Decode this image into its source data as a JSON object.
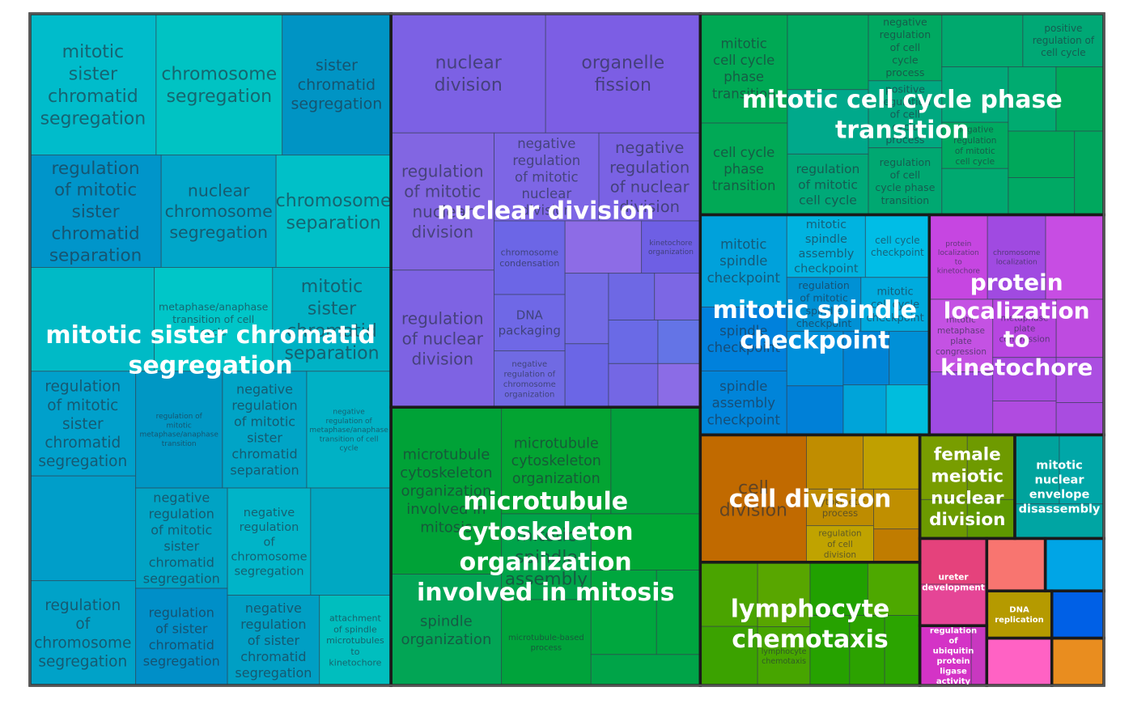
{
  "chart_data": {
    "type": "treemap",
    "title": "",
    "groups": [
      {
        "name": "mitotic sister chromatid segregation",
        "color": "#00a9c4",
        "cells": [
          {
            "label": "mitotic sister chromatid segregation",
            "color": "#00bccb",
            "size": 5.8
          },
          {
            "label": "chromosome segregation",
            "color": "#00c3c3",
            "size": 5.8
          },
          {
            "label": "sister chromatid segregation",
            "color": "#0094c4",
            "size": 5.0
          },
          {
            "label": "nuclear chromosome segregation",
            "color": "#00a6c9",
            "size": 4.2
          },
          {
            "label": "chromosome separation",
            "color": "#00c0c8",
            "size": 4.2
          },
          {
            "label": "",
            "color": "#00bac6",
            "size": 4.2
          },
          {
            "label": "metaphase/anaphase transition of cell cycle",
            "color": "#00c6c8",
            "size": 4.0
          },
          {
            "label": "regulation of mitotic sister chromatid segregation",
            "color": "#00a0cb",
            "size": 3.6
          },
          {
            "label": "",
            "color": "#009ec9",
            "size": 3.6
          },
          {
            "label": "regulation of mitotic sister chromatid separation",
            "color": "#0095ca",
            "size": 4.8
          },
          {
            "label": "regulation of chromosome segregation",
            "color": "#00a2c8",
            "size": 3.6
          },
          {
            "label": "mitotic sister chromatid separation",
            "color": "#00b2c5",
            "size": 4.0
          },
          {
            "label": "regulation of sister chromatid segregation",
            "color": "#008fc8",
            "size": 2.9
          },
          {
            "label": "negative regulation of mitotic sister chromatid separation",
            "color": "#00a4c6",
            "size": 3.2
          },
          {
            "label": "negative regulation of metaphase/anaphase transition of cell cycle",
            "color": "#00b1c5",
            "size": 3.2
          },
          {
            "label": "negative regulation of mitotic sister chromatid segregation",
            "color": "#00a3c4",
            "size": 3.0
          },
          {
            "label": "negative regulation of chromosome segregation",
            "color": "#00b4c8",
            "size": 2.9
          },
          {
            "label": "regulation of mitotic metaphase/anaphase transition",
            "color": "#0097c4",
            "size": 3.3
          },
          {
            "label": "",
            "color": "#00a8c2",
            "size": 2.8
          },
          {
            "label": "negative regulation of sister chromatid segregation",
            "color": "#009fc4",
            "size": 2.7
          },
          {
            "label": "attachment of spindle microtubules to kinetochore",
            "color": "#00bebe",
            "size": 2.1
          }
        ]
      },
      {
        "name": "microtubule cytoskeleton organization involved in mitosis",
        "color": "#00a63a",
        "cells": [
          {
            "label": "microtubule cytoskeleton organization involved in mitosis",
            "color": "#00a237",
            "size": 6.0
          },
          {
            "label": "spindle organization",
            "color": "#02a555",
            "size": 4.0
          },
          {
            "label": "microtubule cytoskeleton organization",
            "color": "#03a432",
            "size": 3.8
          },
          {
            "label": "",
            "color": "#01a13b",
            "size": 3.1
          },
          {
            "label": "mitotic spindle assembly",
            "color": "#00a44a",
            "size": 2.5
          },
          {
            "label": "microtubule-based process",
            "color": "#00a33b",
            "size": 2.5
          },
          {
            "label": "",
            "color": "#00a734",
            "size": 2.0
          },
          {
            "label": "",
            "color": "#00a73e",
            "size": 1.8
          },
          {
            "label": "",
            "color": "#00a53f",
            "size": 1.2
          },
          {
            "label": "",
            "color": "#00a448",
            "size": 1.1
          }
        ]
      },
      {
        "name": "mitotic cell cycle phase transition",
        "color": "#00a963",
        "cells": [
          {
            "label": "mitotic cell cycle phase transition",
            "color": "#00a954",
            "size": 3.1
          },
          {
            "label": "cell cycle phase transition",
            "color": "#01a956",
            "size": 2.6
          },
          {
            "label": "regulation of mitotic cell cycle",
            "color": "#00a978",
            "size": 1.6
          },
          {
            "label": "negative regulation of cell cycle process",
            "color": "#00a961",
            "size": 1.6
          },
          {
            "label": "",
            "color": "#00a98b",
            "size": 1.7
          },
          {
            "label": "",
            "color": "#00a960",
            "size": 2.0
          },
          {
            "label": "negative regulation of mitotic cell cycle",
            "color": "#00aa61",
            "size": 1.0
          },
          {
            "label": "",
            "color": "#00a970",
            "size": 1.0
          },
          {
            "label": "",
            "color": "#00ab70",
            "size": 1.0
          },
          {
            "label": "",
            "color": "#00a96e",
            "size": 1.4
          },
          {
            "label": "",
            "color": "#00aa79",
            "size": 1.2
          },
          {
            "label": "positive regulation of cell cycle process",
            "color": "#00a880",
            "size": 1.6
          },
          {
            "label": "regulation of cell cycle phase transition",
            "color": "#00a871",
            "size": 1.6
          },
          {
            "label": "positive regulation of cell cycle",
            "color": "#00a875",
            "size": 1.4
          },
          {
            "label": "",
            "color": "#00a95a",
            "size": 1.0
          },
          {
            "label": "",
            "color": "#00a85a",
            "size": 1.0
          },
          {
            "label": "",
            "color": "#00a964",
            "size": 0.8
          },
          {
            "label": "",
            "color": "#00a85e",
            "size": 0.8
          }
        ]
      },
      {
        "name": "nuclear division",
        "color": "#7d66e5",
        "cells": [
          {
            "label": "nuclear division",
            "color": "#7c61e4",
            "size": 6.0
          },
          {
            "label": "organelle fission",
            "color": "#7c5ee4",
            "size": 6.0
          },
          {
            "label": "regulation of mitotic nuclear division",
            "color": "#8266e2",
            "size": 4.6
          },
          {
            "label": "regulation of nuclear division",
            "color": "#7e63e3",
            "size": 4.6
          },
          {
            "label": "negative regulation of mitotic nuclear division",
            "color": "#7d66e5",
            "size": 3.0
          },
          {
            "label": "negative regulation of nuclear division",
            "color": "#7a62e4",
            "size": 2.9
          },
          {
            "label": "chromosome condensation",
            "color": "#6c66e6",
            "size": 1.7
          },
          {
            "label": "DNA packaging",
            "color": "#6f68e6",
            "size": 1.3
          },
          {
            "label": "negative regulation of chromosome organization",
            "color": "#706ae3",
            "size": 1.3
          },
          {
            "label": "kinetochore organization",
            "color": "#6e5fe4",
            "size": 1.0
          },
          {
            "label": "",
            "color": "#8d6ce6",
            "size": 1.3
          },
          {
            "label": "",
            "color": "#736be5",
            "size": 1.0
          },
          {
            "label": "",
            "color": "#6b66e6",
            "size": 0.9
          },
          {
            "label": "",
            "color": "#6e68e4",
            "size": 0.7
          },
          {
            "label": "",
            "color": "#7c67e4",
            "size": 0.7
          },
          {
            "label": "",
            "color": "#6a6ae6",
            "size": 0.7
          },
          {
            "label": "",
            "color": "#7467e4",
            "size": 0.7
          },
          {
            "label": "",
            "color": "#6474e6",
            "size": 0.6
          },
          {
            "label": "",
            "color": "#8b6ce6",
            "size": 0.6
          }
        ]
      },
      {
        "name": "mitotic spindle checkpoint",
        "color": "#0096d8",
        "cells": [
          {
            "label": "mitotic spindle assembly checkpoint",
            "color": "#00b3e0",
            "size": 1.6
          },
          {
            "label": "spindle checkpoint",
            "color": "#0081dc",
            "size": 1.8
          },
          {
            "label": "cell cycle checkpoint",
            "color": "#00bde6",
            "size": 1.3
          },
          {
            "label": "mitotic cell cycle checkpoint",
            "color": "#00abde",
            "size": 1.2
          },
          {
            "label": "mitotic spindle checkpoint",
            "color": "#00a1db",
            "size": 2.6
          },
          {
            "label": "spindle assembly checkpoint",
            "color": "#0084d9",
            "size": 1.8
          },
          {
            "label": "regulation of mitotic spindle checkpoint",
            "color": "#0091d5",
            "size": 1.3
          },
          {
            "label": "",
            "color": "#0090db",
            "size": 1.0
          },
          {
            "label": "",
            "color": "#0080d7",
            "size": 0.9
          },
          {
            "label": "",
            "color": "#0084d6",
            "size": 0.8
          },
          {
            "label": "",
            "color": "#0090d7",
            "size": 0.7
          },
          {
            "label": "",
            "color": "#00a4d9",
            "size": 0.7
          },
          {
            "label": "",
            "color": "#00bddd",
            "size": 0.7
          }
        ]
      },
      {
        "name": "cell division",
        "color": "#c06c00",
        "cells": [
          {
            "label": "cell division",
            "color": "#c16a00",
            "size": 4.4
          },
          {
            "label": "",
            "color": "#c07c00",
            "size": 0.5
          },
          {
            "label": "",
            "color": "#c08d00",
            "size": 1.0
          },
          {
            "label": "cytokinetic process",
            "color": "#be8c00",
            "size": 0.8
          },
          {
            "label": "",
            "color": "#c0a000",
            "size": 1.0
          },
          {
            "label": "regulation of cell division",
            "color": "#c0a300",
            "size": 0.8
          },
          {
            "label": "",
            "color": "#c08f00",
            "size": 0.6
          }
        ]
      },
      {
        "name": "lymphocyte chemotaxis",
        "color": "#3aa400",
        "cells": [
          {
            "label": "lymphocyte chemotaxis",
            "color": "#47a500",
            "size": 1.0
          },
          {
            "label": "",
            "color": "#21a100",
            "size": 1.0
          },
          {
            "label": "",
            "color": "#3ba200",
            "size": 1.1
          },
          {
            "label": "",
            "color": "#58a600",
            "size": 1.1
          },
          {
            "label": "",
            "color": "#4da800",
            "size": 0.9
          },
          {
            "label": "",
            "color": "#26a200",
            "size": 0.9
          },
          {
            "label": "",
            "color": "#4aa400",
            "size": 1.2
          },
          {
            "label": "",
            "color": "#2ca200",
            "size": 0.8
          },
          {
            "label": "",
            "color": "#2ba400",
            "size": 0.8
          }
        ]
      },
      {
        "name": "protein localization to kinetochore",
        "color": "#bb46e0",
        "cells": [
          {
            "label": "protein localization to kinetochore",
            "color": "#c646e1",
            "size": 1.6
          },
          {
            "label": "chromosome localization",
            "color": "#a04ae1",
            "size": 1.6
          },
          {
            "label": "",
            "color": "#c74de3",
            "size": 1.6
          },
          {
            "label": "metaphase plate congression",
            "color": "#b746e0",
            "size": 1.2
          },
          {
            "label": "mitotic metaphase plate congression",
            "color": "#c452e3",
            "size": 1.5
          },
          {
            "label": "",
            "color": "#9f4be2",
            "size": 1.3
          },
          {
            "label": "",
            "color": "#be4be0",
            "size": 0.9
          },
          {
            "label": "",
            "color": "#aa4ae1",
            "size": 0.9
          },
          {
            "label": "",
            "color": "#b04be0",
            "size": 0.7
          },
          {
            "label": "",
            "color": "#ab4ee1",
            "size": 0.7
          },
          {
            "label": "",
            "color": "#a94ce0",
            "size": 0.5
          }
        ]
      },
      {
        "name": "female meiotic nuclear division",
        "color": "#6e9800",
        "cells": [
          {
            "label": "",
            "color": "#789d00",
            "size": 1.0
          },
          {
            "label": "",
            "color": "#6c9a00",
            "size": 0.6
          },
          {
            "label": "",
            "color": "#6e9a00",
            "size": 1.0
          },
          {
            "label": "",
            "color": "#5e9900",
            "size": 0.6
          }
        ]
      },
      {
        "name": "regulation of ubiquitin protein ligase activity",
        "color": "#d433c6",
        "cells": [
          {
            "label": "",
            "color": "#d433c6",
            "size": 1.0
          },
          {
            "label": "",
            "color": "#c838c0",
            "size": 0.3
          }
        ]
      },
      {
        "name": "",
        "color": "#f87570",
        "cells": [
          {
            "label": "",
            "color": "#f87570",
            "size": 1.0
          }
        ]
      },
      {
        "name": "",
        "color": "#00a5e6",
        "cells": [
          {
            "label": "",
            "color": "#00a5e6",
            "size": 1.0
          }
        ]
      },
      {
        "name": "",
        "color": "#0060e6",
        "cells": [
          {
            "label": "",
            "color": "#0060e6",
            "size": 0.8
          }
        ]
      },
      {
        "name": "ureter development",
        "color": "#e5427c",
        "cells": [
          {
            "label": "",
            "color": "#e5427c",
            "size": 1.0
          },
          {
            "label": "",
            "color": "#e54596",
            "size": 0.9
          }
        ]
      },
      {
        "name": "mitotic nuclear envelope disassembly",
        "color": "#00a6a6",
        "cells": [
          {
            "label": "",
            "color": "#00a39d",
            "size": 1.0
          },
          {
            "label": "",
            "color": "#00a7a8",
            "size": 1.0
          },
          {
            "label": "",
            "color": "#00a5a3",
            "size": 1.0
          }
        ]
      },
      {
        "name": "DNA replication",
        "color": "#b59a00",
        "cells": [
          {
            "label": "",
            "color": "#b59a00",
            "size": 1.0
          }
        ]
      },
      {
        "name": "",
        "color": "#ff62c4",
        "cells": [
          {
            "label": "",
            "color": "#ff62c4",
            "size": 1.0
          }
        ]
      },
      {
        "name": "",
        "color": "#e98d1f",
        "cells": [
          {
            "label": "",
            "color": "#e98d1f",
            "size": 0.8
          }
        ]
      }
    ]
  }
}
